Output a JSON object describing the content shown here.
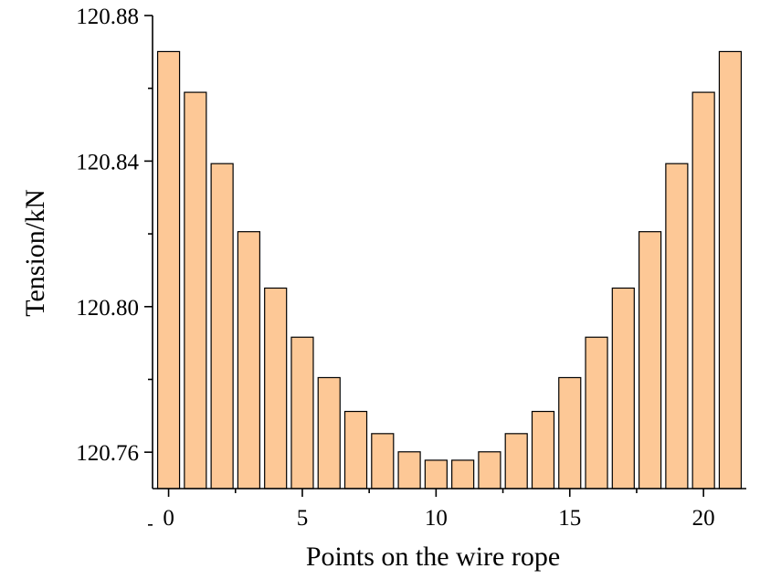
{
  "chart_data": {
    "type": "bar",
    "title": "",
    "xlabel": "Points on the wire rope",
    "ylabel": "Tension/kN",
    "x": [
      0,
      1,
      2,
      3,
      4,
      5,
      6,
      7,
      8,
      9,
      10,
      11,
      12,
      13,
      14,
      15,
      16,
      17,
      18,
      19,
      20,
      21
    ],
    "values": [
      120.8701,
      120.8589,
      120.8393,
      120.8206,
      120.8051,
      120.7916,
      120.7805,
      120.7712,
      120.7651,
      120.7601,
      120.7578,
      120.7578,
      120.7601,
      120.7651,
      120.7712,
      120.7805,
      120.7916,
      120.8051,
      120.8206,
      120.8393,
      120.8589,
      120.8701
    ],
    "ylim": [
      120.75,
      120.88
    ],
    "xlim": [
      -0.6,
      21.6
    ],
    "y_ticks": [
      "120.76",
      "120.80",
      "120.84",
      "120.88"
    ],
    "y_tick_values": [
      120.76,
      120.8,
      120.84,
      120.88
    ],
    "x_ticks": [
      "0",
      "5",
      "10",
      "15",
      "20"
    ],
    "x_tick_values": [
      0,
      5,
      10,
      15,
      20
    ],
    "bar_color": "#FDC896",
    "grid": false,
    "legend": "none"
  }
}
